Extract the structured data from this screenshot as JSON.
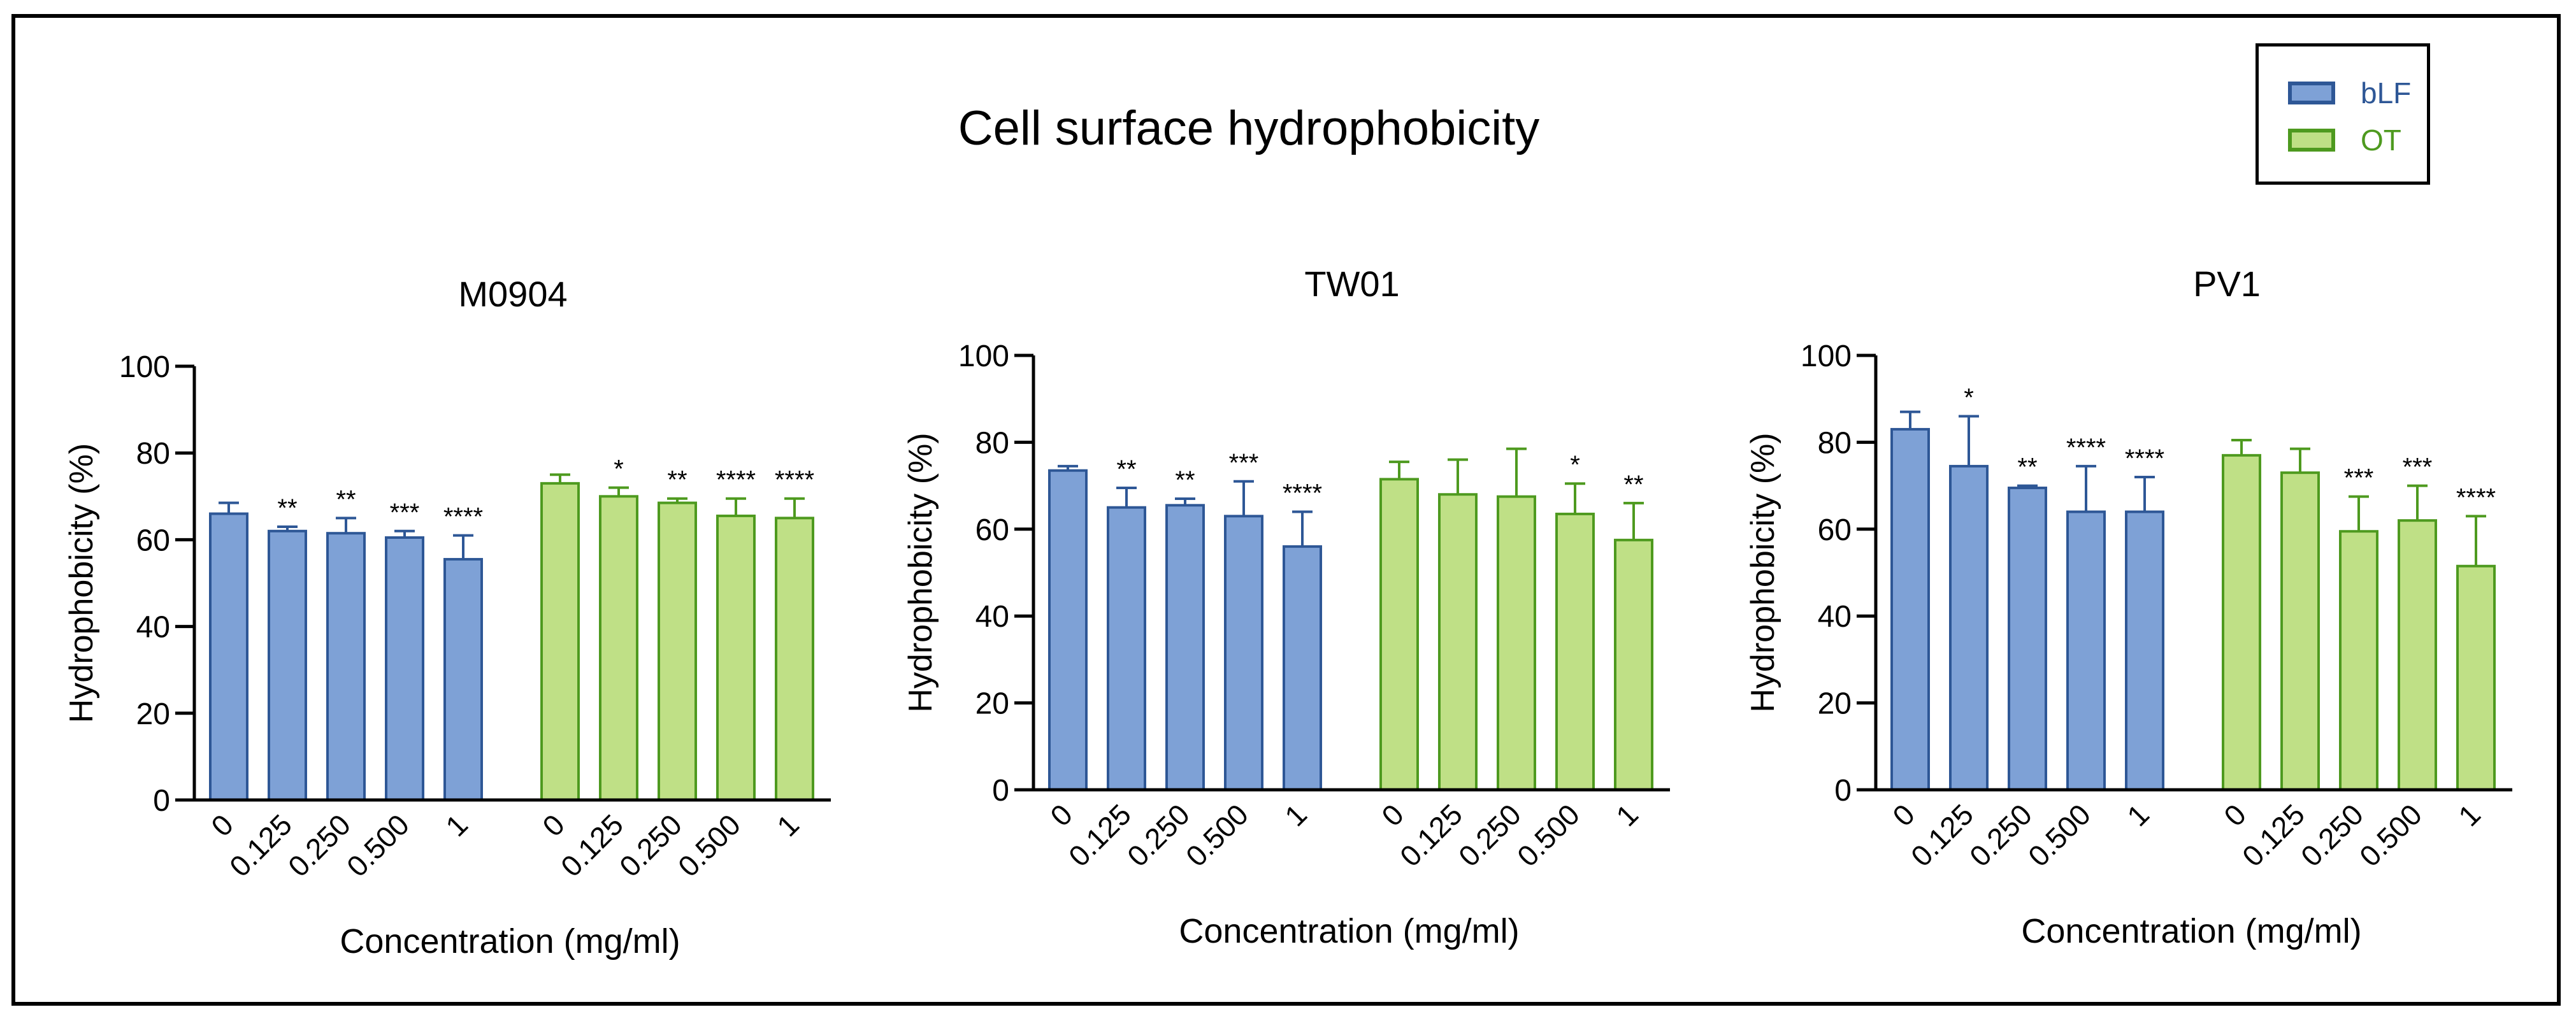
{
  "figure": {
    "title": "Cell surface hydrophobicity"
  },
  "legend": {
    "items": [
      {
        "label": "bLF",
        "fill": "#7ea1d6",
        "stroke": "#2e5796",
        "text_color": "#2e5796"
      },
      {
        "label": "OT",
        "fill": "#bfe086",
        "stroke": "#4e9a1f",
        "text_color": "#4e9a1f"
      }
    ]
  },
  "chart_data": [
    {
      "type": "bar",
      "title": "M0904",
      "xlabel": "Concentration (mg/ml)",
      "ylabel": "Hydrophobicity (%)",
      "ylim": [
        0,
        100
      ],
      "yticks": [
        0,
        20,
        40,
        60,
        80,
        100
      ],
      "categories": [
        "0",
        "0.125",
        "0.250",
        "0.500",
        "1"
      ],
      "series": [
        {
          "name": "bLF",
          "values": [
            66,
            62,
            61.5,
            60.5,
            55.5
          ],
          "errors": [
            2.5,
            1,
            3.5,
            1.5,
            5.5
          ],
          "significance": [
            "",
            "**",
            "**",
            "***",
            "****"
          ]
        },
        {
          "name": "OT",
          "values": [
            73,
            70,
            68.5,
            65.5,
            65
          ],
          "errors": [
            2,
            2,
            1,
            4,
            4.5
          ],
          "significance": [
            "",
            "*",
            "**",
            "****",
            "****"
          ]
        }
      ]
    },
    {
      "type": "bar",
      "title": "TW01",
      "xlabel": "Concentration (mg/ml)",
      "ylabel": "Hydrophobicity (%)",
      "ylim": [
        0,
        100
      ],
      "yticks": [
        0,
        20,
        40,
        60,
        80,
        100
      ],
      "categories": [
        "0",
        "0.125",
        "0.250",
        "0.500",
        "1"
      ],
      "series": [
        {
          "name": "bLF",
          "values": [
            73.5,
            65,
            65.5,
            63,
            56
          ],
          "errors": [
            1,
            4.5,
            1.5,
            8,
            8
          ],
          "significance": [
            "",
            "**",
            "**",
            "***",
            "****"
          ]
        },
        {
          "name": "OT",
          "values": [
            71.5,
            68,
            67.5,
            63.5,
            57.5
          ],
          "errors": [
            4,
            8,
            11,
            7,
            8.5
          ],
          "significance": [
            "",
            "",
            "",
            "*",
            "**"
          ]
        }
      ]
    },
    {
      "type": "bar",
      "title": "PV1",
      "xlabel": "Concentration (mg/ml)",
      "ylabel": "Hydrophobicity (%)",
      "ylim": [
        0,
        100
      ],
      "yticks": [
        0,
        20,
        40,
        60,
        80,
        100
      ],
      "categories": [
        "0",
        "0.125",
        "0.250",
        "0.500",
        "1"
      ],
      "series": [
        {
          "name": "bLF",
          "values": [
            83,
            74.5,
            69.5,
            64,
            64
          ],
          "errors": [
            4,
            11.5,
            0.5,
            10.5,
            8
          ],
          "significance": [
            "",
            "*",
            "**",
            "****",
            "****"
          ]
        },
        {
          "name": "OT",
          "values": [
            77,
            73,
            59.5,
            62,
            51.5
          ],
          "errors": [
            3.5,
            5.5,
            8,
            8,
            11.5
          ],
          "significance": [
            "",
            "",
            "***",
            "***",
            "****"
          ]
        }
      ]
    }
  ]
}
